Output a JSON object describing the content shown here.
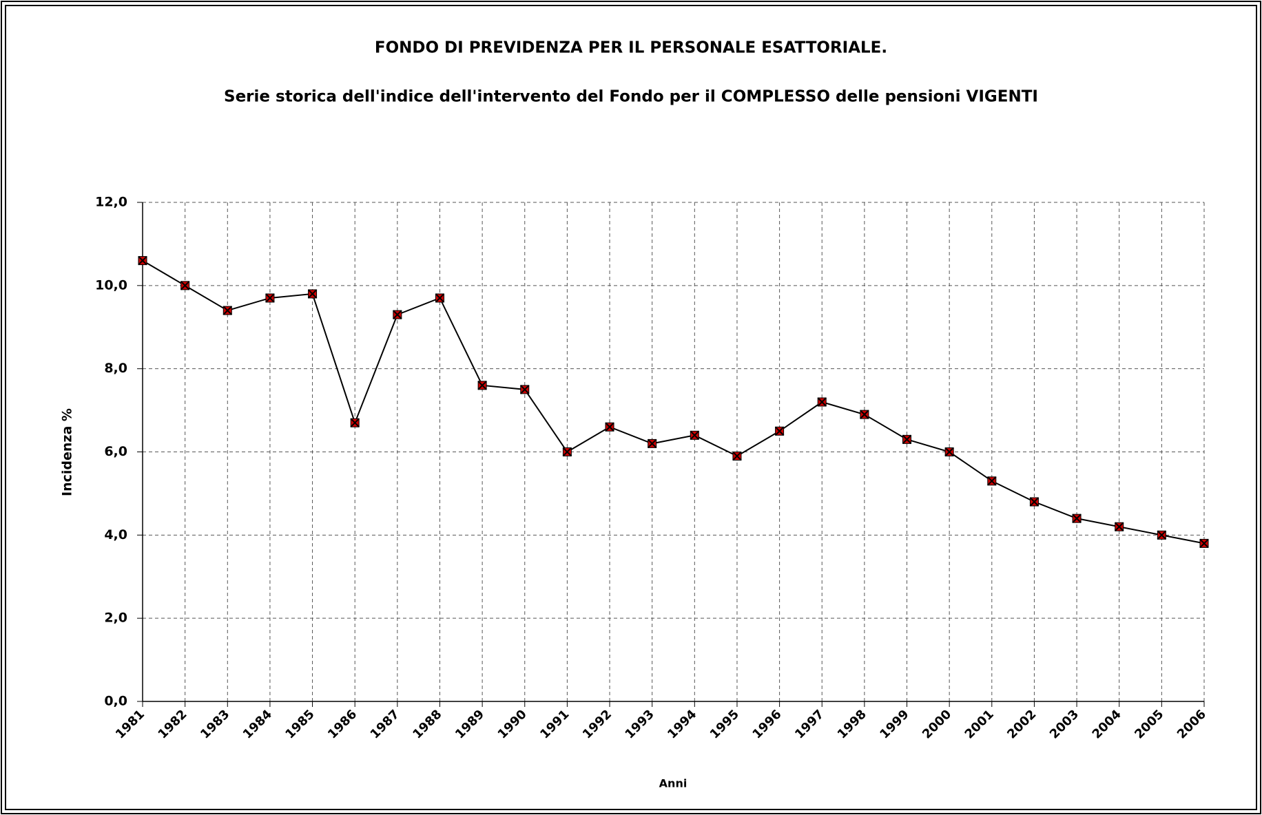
{
  "chart_data": {
    "type": "line",
    "title": "FONDO DI PREVIDENZA PER IL PERSONALE ESATTORIALE.",
    "subtitle": "Serie storica dell'indice dell'intervento del Fondo per il COMPLESSO delle pensioni VIGENTI",
    "x_label": "Anni",
    "y_label": "Incidenza %",
    "categories": [
      "1981",
      "1982",
      "1983",
      "1984",
      "1985",
      "1986",
      "1987",
      "1988",
      "1989",
      "1990",
      "1991",
      "1992",
      "1993",
      "1994",
      "1995",
      "1996",
      "1997",
      "1998",
      "1999",
      "2000",
      "2001",
      "2002",
      "2003",
      "2004",
      "2005",
      "2006"
    ],
    "series": [
      {
        "name": "Incidenza %",
        "color": "#000000",
        "marker_color": "#cc0000",
        "values": [
          10.6,
          10.0,
          9.4,
          9.7,
          9.8,
          6.7,
          9.3,
          9.7,
          7.6,
          7.5,
          6.0,
          6.6,
          6.2,
          6.4,
          5.9,
          6.5,
          7.2,
          6.9,
          6.3,
          6.0,
          5.3,
          4.8,
          4.4,
          4.2,
          4.0,
          3.8
        ]
      }
    ],
    "ylim": [
      0,
      12
    ],
    "yticks": [
      {
        "value": 0,
        "label": "0,0"
      },
      {
        "value": 2,
        "label": "2,0"
      },
      {
        "value": 4,
        "label": "4,0"
      },
      {
        "value": 6,
        "label": "6,0"
      },
      {
        "value": 8,
        "label": "8,0"
      },
      {
        "value": 10,
        "label": "10,0"
      },
      {
        "value": 12,
        "label": "12,0"
      }
    ],
    "grid": true
  }
}
